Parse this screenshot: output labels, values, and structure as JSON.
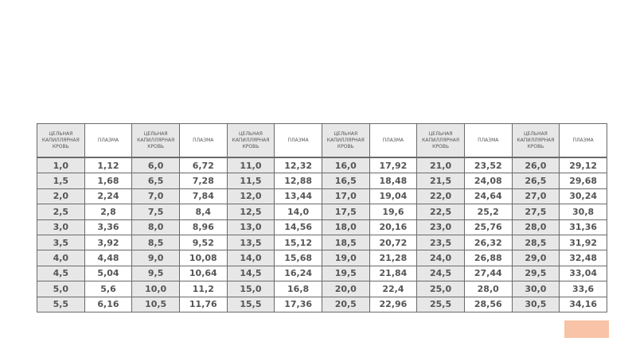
{
  "table": {
    "headers": [
      "ЦЕЛЬНАЯ КАПИЛЛЯРНАЯ КРОВЬ",
      "ПЛАЗМА",
      "ЦЕЛЬНАЯ КАПИЛЛЯРНАЯ КРОВЬ",
      "ПЛАЗМА",
      "ЦЕЛЬНАЯ КАПИЛЛЯРНАЯ КРОВЬ",
      "ПЛАЗМА",
      "ЦЕЛЬНАЯ КАПИЛЛЯРНАЯ КРОВЬ",
      "ПЛАЗМА",
      "ЦЕЛЬНАЯ КАПИЛЛЯРНАЯ КРОВЬ",
      "ПЛАЗМА",
      "ЦЕЛЬНАЯ КАПИЛЛЯРНАЯ КРОВЬ",
      "ПЛАЗМА"
    ],
    "rows": [
      [
        "1,0",
        "1,12",
        "6,0",
        "6,72",
        "11,0",
        "12,32",
        "16,0",
        "17,92",
        "21,0",
        "23,52",
        "26,0",
        "29,12"
      ],
      [
        "1,5",
        "1,68",
        "6,5",
        "7,28",
        "11,5",
        "12,88",
        "16,5",
        "18,48",
        "21,5",
        "24,08",
        "26,5",
        "29,68"
      ],
      [
        "2,0",
        "2,24",
        "7,0",
        "7,84",
        "12,0",
        "13,44",
        "17,0",
        "19,04",
        "22,0",
        "24,64",
        "27,0",
        "30,24"
      ],
      [
        "2,5",
        "2,8",
        "7,5",
        "8,4",
        "12,5",
        "14,0",
        "17,5",
        "19,6",
        "22,5",
        "25,2",
        "27,5",
        "30,8"
      ],
      [
        "3,0",
        "3,36",
        "8,0",
        "8,96",
        "13,0",
        "14,56",
        "18,0",
        "20,16",
        "23,0",
        "25,76",
        "28,0",
        "31,36"
      ],
      [
        "3,5",
        "3,92",
        "8,5",
        "9,52",
        "13,5",
        "15,12",
        "18,5",
        "20,72",
        "23,5",
        "26,32",
        "28,5",
        "31,92"
      ],
      [
        "4,0",
        "4,48",
        "9,0",
        "10,08",
        "14,0",
        "15,68",
        "19,0",
        "21,28",
        "24,0",
        "26,88",
        "29,0",
        "32,48"
      ],
      [
        "4,5",
        "5,04",
        "9,5",
        "10,64",
        "14,5",
        "16,24",
        "19,5",
        "21,84",
        "24,5",
        "27,44",
        "29,5",
        "33,04"
      ],
      [
        "5,0",
        "5,6",
        "10,0",
        "11,2",
        "15,0",
        "16,8",
        "20,0",
        "22,4",
        "25,0",
        "28,0",
        "30,0",
        "33,6"
      ],
      [
        "5,5",
        "6,16",
        "10,5",
        "11,76",
        "15,5",
        "17,36",
        "20,5",
        "22,96",
        "25,5",
        "28,56",
        "30,5",
        "34,16"
      ]
    ]
  }
}
